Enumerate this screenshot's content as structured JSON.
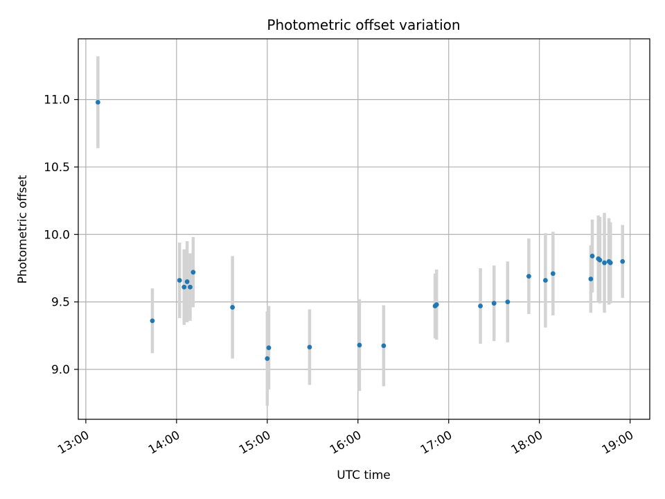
{
  "chart_data": {
    "type": "scatter",
    "title": "Photometric offset variation",
    "xlabel": "UTC time",
    "ylabel": "Photometric offset",
    "grid": true,
    "x_tick_labels": [
      "13:00",
      "14:00",
      "15:00",
      "16:00",
      "17:00",
      "18:00",
      "19:00"
    ],
    "y_tick_labels": [
      "9.0",
      "9.5",
      "10.0",
      "10.5",
      "11.0"
    ],
    "xlim": [
      "12:55",
      "19:13"
    ],
    "ylim": [
      8.63,
      11.45
    ],
    "colors": {
      "point": "#1f77b4",
      "errorbar": "#d3d3d3",
      "grid": "#b0b0b0"
    },
    "series": [
      {
        "points": [
          {
            "x": "13:08",
            "y": 10.98,
            "err": 0.34
          },
          {
            "x": "13:44",
            "y": 9.36,
            "err": 0.24
          },
          {
            "x": "14:02",
            "y": 9.66,
            "err": 0.28
          },
          {
            "x": "14:05",
            "y": 9.61,
            "err": 0.28
          },
          {
            "x": "14:07",
            "y": 9.65,
            "err": 0.3
          },
          {
            "x": "14:09",
            "y": 9.61,
            "err": 0.25
          },
          {
            "x": "14:11",
            "y": 9.72,
            "err": 0.26
          },
          {
            "x": "14:37",
            "y": 9.46,
            "err": 0.38
          },
          {
            "x": "15:00",
            "y": 9.08,
            "err": 0.35
          },
          {
            "x": "15:01",
            "y": 9.16,
            "err": 0.31
          },
          {
            "x": "15:28",
            "y": 9.165,
            "err": 0.28
          },
          {
            "x": "16:01",
            "y": 9.18,
            "err": 0.34
          },
          {
            "x": "16:17",
            "y": 9.175,
            "err": 0.3
          },
          {
            "x": "16:51",
            "y": 9.47,
            "err": 0.24
          },
          {
            "x": "16:52",
            "y": 9.48,
            "err": 0.26
          },
          {
            "x": "17:21",
            "y": 9.47,
            "err": 0.28
          },
          {
            "x": "17:30",
            "y": 9.49,
            "err": 0.28
          },
          {
            "x": "17:39",
            "y": 9.5,
            "err": 0.3
          },
          {
            "x": "17:53",
            "y": 9.69,
            "err": 0.28
          },
          {
            "x": "18:04",
            "y": 9.66,
            "err": 0.35
          },
          {
            "x": "18:09",
            "y": 9.71,
            "err": 0.31
          },
          {
            "x": "18:34",
            "y": 9.67,
            "err": 0.25
          },
          {
            "x": "18:35",
            "y": 9.84,
            "err": 0.27
          },
          {
            "x": "18:39",
            "y": 9.82,
            "err": 0.32
          },
          {
            "x": "18:40",
            "y": 9.81,
            "err": 0.32
          },
          {
            "x": "18:43",
            "y": 9.79,
            "err": 0.37
          },
          {
            "x": "18:46",
            "y": 9.8,
            "err": 0.32
          },
          {
            "x": "18:47",
            "y": 9.79,
            "err": 0.3
          },
          {
            "x": "18:55",
            "y": 9.8,
            "err": 0.27
          }
        ]
      }
    ]
  }
}
